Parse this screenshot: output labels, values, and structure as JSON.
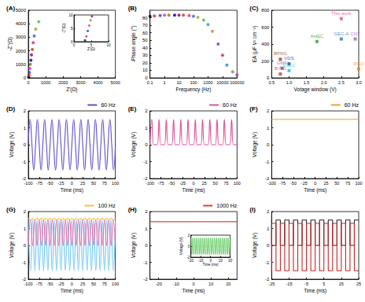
{
  "chart_data": [
    {
      "type": "scatter",
      "title": "(A)",
      "x_label": "Z'(Ω)",
      "y_label": "-Z''(Ω)",
      "marker": "circle",
      "grid": false,
      "x": [
        20,
        40,
        60,
        90,
        120,
        150,
        180,
        230,
        280,
        340,
        420,
        600
      ],
      "values": [
        50,
        200,
        400,
        700,
        1000,
        1300,
        1700,
        2100,
        2600,
        3100,
        3600,
        4150
      ],
      "colors": [
        "#000000",
        "#e02020",
        "#2040e0",
        "#e020e0",
        "#808000",
        "#000080",
        "#800080",
        "#c04000",
        "#e02080",
        "#4060c0",
        "#a0a020",
        "#40c040"
      ],
      "xlim": [
        0,
        5000
      ],
      "xticks": [
        0,
        1000,
        2000,
        3000,
        4000,
        5000
      ],
      "ylim": [
        0,
        5000
      ],
      "yticks": [
        0,
        1000,
        2000,
        3000,
        4000,
        5000
      ],
      "inset": {
        "type": "scatter",
        "x_label": "Z'(Ω)",
        "y_label": "-Z''(Ω)",
        "marker": "circle",
        "grid": false,
        "x": [
          3.2,
          3.6,
          4.0,
          4.4,
          4.8,
          5.2
        ],
        "values": [
          0.5,
          2,
          4,
          6,
          8,
          9.5
        ],
        "colors": [
          "#000000",
          "#e02020",
          "#2040e0",
          "#e020e0",
          "#808000",
          "#800080"
        ],
        "xlim": [
          0,
          10
        ],
        "xticks": [
          0,
          5,
          10
        ],
        "ylim": [
          0,
          10
        ],
        "yticks": [
          0,
          5,
          10
        ]
      }
    },
    {
      "type": "scatter",
      "title": "(B)",
      "x_label": "Frequency (Hz)",
      "y_label": "-Phase angle (°)",
      "marker": "circle",
      "grid": false,
      "log": "x",
      "x": [
        0.1,
        0.2,
        0.5,
        1,
        2,
        5,
        10,
        20,
        50,
        100,
        200,
        500,
        1000,
        2000,
        5000,
        10000,
        20000,
        50000,
        100000
      ],
      "values": [
        82,
        82.5,
        83,
        83.5,
        83.5,
        83.5,
        83.5,
        83.5,
        83,
        82,
        80.5,
        77,
        71,
        62,
        45,
        30,
        17,
        8,
        4
      ],
      "colors": [
        "#000000",
        "#e02020",
        "#2040e0",
        "#e020e0",
        "#808000",
        "#000080",
        "#800080",
        "#c04000",
        "#e02080",
        "#4060c0",
        "#a0a020",
        "#40c040",
        "#20a0a0",
        "#e08020",
        "#6040c0",
        "#c02060",
        "#2080e0",
        "#60a040",
        "#a040a0"
      ],
      "xlim": [
        0.1,
        100000
      ],
      "xticks": [
        0.1,
        1,
        10,
        100,
        1000,
        10000,
        100000
      ],
      "ylim": [
        0,
        90
      ],
      "yticks": [
        0,
        10,
        20,
        30,
        40,
        50,
        60,
        70,
        80
      ]
    },
    {
      "type": "scatter",
      "title": "(C)",
      "x_label": "Votage window (V)",
      "y_label": "EA (μF V² cm⁻²)",
      "marker": "square",
      "grid": false,
      "x": [
        0.75,
        1.0,
        0.8,
        1.0,
        0.75,
        1.8,
        2.5,
        2.9,
        3.0,
        2.5
      ],
      "values": [
        220,
        165,
        115,
        85,
        45,
        430,
        460,
        460,
        105,
        700
      ],
      "labels": [
        "BPNG",
        "VDS",
        "GMF",
        "VOLC",
        "B-NG",
        "AHEC",
        "GEC-A",
        "CNT",
        "RGO",
        "This work"
      ],
      "colors": [
        "#8b4513",
        "#1f3a93",
        "#6a5acd",
        "#17becf",
        "#c0392b",
        "#2ca02c",
        "#1f77b4",
        "#9467bd",
        "#ff7f0e",
        "#e84a8a"
      ],
      "xlim": [
        0.5,
        3.0
      ],
      "xticks": [
        0.5,
        {
          "value": 1,
          "label": "1.0"
        },
        1.5,
        {
          "value": 2,
          "label": "2.0"
        },
        2.5,
        {
          "value": 3,
          "label": "3.0"
        }
      ],
      "ylim": [
        0,
        800
      ],
      "yticks": [
        0,
        200,
        400,
        600,
        800
      ]
    },
    {
      "type": "line",
      "title": "(D)",
      "x_label": "Time (ms)",
      "y_label": "Voltage (V)",
      "grid": false,
      "legend": "upper right",
      "x": [
        -100,
        -95.8,
        -91.7,
        -87.5,
        -83.3,
        -79.2,
        -75,
        -70.8,
        -66.7,
        -62.5,
        -58.3,
        -54.2,
        -50,
        -45.8,
        -41.7,
        -37.5,
        -33.3,
        -29.2,
        -25,
        -20.8,
        -16.7,
        -12.5,
        -8.3,
        -4.2,
        0,
        4.2,
        8.3,
        12.5,
        16.7,
        20.8,
        25,
        29.2,
        33.3,
        37.5,
        41.7,
        45.8,
        50,
        54.2,
        58.3,
        62.5,
        66.7,
        70.8,
        75,
        79.2,
        83.3,
        87.5,
        91.7,
        95.8,
        100
      ],
      "series": [
        {
          "name": "60 Hz",
          "color": "#5b4fcf",
          "line_style": "smooth",
          "values": [
            0,
            1.5,
            0,
            -1.5,
            0,
            1.5,
            0,
            -1.5,
            0,
            1.5,
            0,
            -1.5,
            0,
            1.5,
            0,
            -1.5,
            0,
            1.5,
            0,
            -1.5,
            0,
            1.5,
            0,
            -1.5,
            0,
            1.5,
            0,
            -1.5,
            0,
            1.5,
            0,
            -1.5,
            0,
            1.5,
            0,
            -1.5,
            0,
            1.5,
            0,
            -1.5,
            0,
            1.5,
            0,
            -1.5,
            0,
            1.5,
            0,
            -1.5,
            0
          ]
        }
      ],
      "xlim": [
        -100,
        100
      ],
      "xticks": [
        -100,
        -75,
        -50,
        -25,
        0,
        25,
        50,
        75,
        100
      ],
      "ylim": [
        -2,
        2
      ],
      "yticks": [
        -2,
        -1,
        0,
        1,
        2
      ]
    },
    {
      "type": "line",
      "title": "(E)",
      "x_label": "Time (ms)",
      "y_label": "Voltage (V)",
      "grid": false,
      "legend": "upper right",
      "x": [
        -100,
        -95.8,
        -91.7,
        -87.5,
        -83.3,
        -79.2,
        -75,
        -70.8,
        -66.7,
        -62.5,
        -58.3,
        -54.2,
        -50,
        -45.8,
        -41.7,
        -37.5,
        -33.3,
        -29.2,
        -25,
        -20.8,
        -16.7,
        -12.5,
        -8.3,
        -4.2,
        0,
        4.2,
        8.3,
        12.5,
        16.7,
        20.8,
        25,
        29.2,
        33.3,
        37.5,
        41.7,
        45.8,
        50,
        54.2,
        58.3,
        62.5,
        66.7,
        70.8,
        75,
        79.2,
        83.3,
        87.5,
        91.7,
        95.8,
        100
      ],
      "series": [
        {
          "name": "60 Hz",
          "color": "#e0509a",
          "line_style": "smooth",
          "values": [
            0,
            1.5,
            0,
            0,
            0,
            1.5,
            0,
            0,
            0,
            1.5,
            0,
            0,
            0,
            1.5,
            0,
            0,
            0,
            1.5,
            0,
            0,
            0,
            1.5,
            0,
            0,
            0,
            1.5,
            0,
            0,
            0,
            1.5,
            0,
            0,
            0,
            1.5,
            0,
            0,
            0,
            1.5,
            0,
            0,
            0,
            1.5,
            0,
            0,
            0,
            1.5,
            0,
            0,
            0
          ]
        }
      ],
      "xlim": [
        -100,
        100
      ],
      "xticks": [
        -100,
        -75,
        -50,
        -25,
        0,
        25,
        50,
        75,
        100
      ],
      "ylim": [
        -2,
        2
      ],
      "yticks": [
        -2,
        -1,
        0,
        1,
        2
      ]
    },
    {
      "type": "line",
      "title": "(F)",
      "x_label": "Time (ms)",
      "y_label": "Voltage (V)",
      "grid": false,
      "legend": "upper right",
      "x": [
        -100,
        100
      ],
      "series": [
        {
          "name": "60 Hz",
          "color": "#f0a030",
          "line_style": "solid",
          "values": [
            1.5,
            1.5
          ]
        }
      ],
      "xlim": [
        -100,
        100
      ],
      "xticks": [
        -100,
        -75,
        -50,
        -25,
        0,
        25,
        50,
        75,
        100
      ],
      "ylim": [
        -2,
        2
      ],
      "yticks": [
        -2,
        -1,
        0,
        1,
        2
      ]
    },
    {
      "type": "line",
      "title": "(G)",
      "x_label": "Time (ms)",
      "y_label": "Voltage (V)",
      "grid": false,
      "legend": "upper right",
      "x": [
        -100,
        -95,
        -90,
        -85,
        -80,
        -75,
        -70,
        -65,
        -60,
        -55,
        -50,
        -45,
        -40,
        -35,
        -30,
        -25,
        -20,
        -15,
        -10,
        -5,
        0,
        5,
        10,
        15,
        20,
        25,
        30,
        35,
        40,
        45,
        50,
        55,
        60,
        65,
        70,
        75,
        80,
        85,
        90,
        95,
        100
      ],
      "series": [
        {
          "name": "100 Hz",
          "color": "#f2c744",
          "line_style": "smooth",
          "values": [
            1.6,
            1.5,
            1.6,
            1.5,
            1.6,
            1.5,
            1.6,
            1.5,
            1.6,
            1.5,
            1.6,
            1.5,
            1.6,
            1.5,
            1.6,
            1.5,
            1.6,
            1.5,
            1.6,
            1.5,
            1.6,
            1.5,
            1.6,
            1.5,
            1.6,
            1.5,
            1.6,
            1.5,
            1.6,
            1.5,
            1.6,
            1.5,
            1.6,
            1.5,
            1.6,
            1.5,
            1.6,
            1.5,
            1.6,
            1.5,
            1.6
          ]
        },
        {
          "color": "#6ec6f0",
          "line_style": "smooth",
          "values": [
            1.5,
            -1.5,
            1.5,
            -1.5,
            1.5,
            -1.5,
            1.5,
            -1.5,
            1.5,
            -1.5,
            1.5,
            -1.5,
            1.5,
            -1.5,
            1.5,
            -1.5,
            1.5,
            -1.5,
            1.5,
            -1.5,
            1.5,
            -1.5,
            1.5,
            -1.5,
            1.5,
            -1.5,
            1.5,
            -1.5,
            1.5,
            -1.5,
            1.5,
            -1.5,
            1.5,
            -1.5,
            1.5,
            -1.5,
            1.5,
            -1.5,
            1.5,
            -1.5,
            1.5
          ]
        },
        {
          "color": "#e86aa8",
          "line_style": "smooth",
          "values": [
            0,
            1.5,
            0,
            1.5,
            0,
            1.5,
            0,
            1.5,
            0,
            1.5,
            0,
            1.5,
            0,
            1.5,
            0,
            1.5,
            0,
            1.5,
            0,
            1.5,
            0,
            1.5,
            0,
            1.5,
            0,
            1.5,
            0,
            1.5,
            0,
            1.5,
            0,
            1.5,
            0,
            1.5,
            0,
            1.5,
            0,
            1.5,
            0,
            1.5,
            0
          ]
        }
      ],
      "xlim": [
        -100,
        100
      ],
      "xticks": [
        -100,
        -75,
        -50,
        -25,
        0,
        25,
        50,
        75,
        100
      ],
      "ylim": [
        -2,
        2
      ],
      "yticks": [
        -2,
        -1,
        0,
        1,
        2
      ]
    },
    {
      "type": "line",
      "title": "(H)",
      "x_label": "Time (ms)",
      "y_label": "Voltage (V)",
      "grid": false,
      "legend": "upper right",
      "x": [
        -25,
        25
      ],
      "series": [
        {
          "name": "1000 Hz",
          "color": "#e04040",
          "line_style": "solid",
          "values": [
            1.4,
            1.4
          ]
        }
      ],
      "xlim": [
        -25,
        25
      ],
      "xticks": [
        -20,
        -10,
        0,
        10,
        20
      ],
      "ylim": [
        -2,
        2
      ],
      "yticks": [
        -2,
        -1,
        0,
        1,
        2
      ],
      "inset": {
        "type": "line",
        "x_label": "Time (ms)",
        "y_label": "Voltage (V)",
        "grid": false,
        "x": [
          -20,
          -19,
          -18,
          -17,
          -16,
          -15,
          -14,
          -13,
          -12,
          -11,
          -10,
          -9,
          -8,
          -7,
          -6,
          -5,
          -4,
          -3,
          -2,
          -1,
          0,
          1,
          2,
          3,
          4,
          5,
          6,
          7,
          8,
          9,
          10,
          11,
          12,
          13,
          14,
          15,
          16,
          17,
          18,
          19,
          20
        ],
        "series": [
          {
            "color": "#40c040",
            "line_style": "smooth",
            "values": [
              1.5,
              -1.5,
              1.5,
              -1.5,
              1.5,
              -1.5,
              1.5,
              -1.5,
              1.5,
              -1.5,
              1.5,
              -1.5,
              1.5,
              -1.5,
              1.5,
              -1.5,
              1.5,
              -1.5,
              1.5,
              -1.5,
              1.5,
              -1.5,
              1.5,
              -1.5,
              1.5,
              -1.5,
              1.5,
              -1.5,
              1.5,
              -1.5,
              1.5,
              -1.5,
              1.5,
              -1.5,
              1.5,
              -1.5,
              1.5,
              -1.5,
              1.5,
              -1.5,
              1.5
            ]
          }
        ],
        "xlim": [
          -20,
          20
        ],
        "xticks": [
          -20,
          -10,
          0,
          10,
          20
        ],
        "ylim": [
          -2,
          2
        ],
        "yticks": [
          -2,
          0,
          2
        ]
      }
    },
    {
      "type": "line",
      "title": "(I)",
      "x_label": "Time (ms)",
      "y_label": "Voltage (V)",
      "grid": false,
      "x": [
        -25,
        -22.5,
        -20,
        -17.5,
        -15,
        -12.5,
        -10,
        -7.5,
        -5,
        -2.5,
        0,
        2.5,
        5,
        7.5,
        10,
        12.5,
        15,
        17.5,
        20,
        22.5,
        25
      ],
      "series": [
        {
          "color": "#222222",
          "line_style": "step",
          "values": [
            1.5,
            0,
            1.5,
            0,
            1.5,
            0,
            1.5,
            0,
            1.5,
            0,
            1.5,
            0,
            1.5,
            0,
            1.5,
            0,
            1.5,
            0,
            1.5,
            0,
            1.5
          ]
        },
        {
          "color": "#cc2222",
          "line_style": "step",
          "values": [
            -1.5,
            1.3,
            -1.5,
            1.3,
            -1.5,
            1.3,
            -1.5,
            1.3,
            -1.5,
            1.3,
            -1.5,
            1.3,
            -1.5,
            1.3,
            -1.5,
            1.3,
            -1.5,
            1.3,
            -1.5,
            1.3,
            -1.5
          ]
        }
      ],
      "xlim": [
        -25,
        25
      ],
      "xticks": [
        -25,
        -15,
        -5,
        5,
        15,
        25
      ],
      "ylim": [
        -2,
        2
      ],
      "yticks": [
        -2,
        -1,
        0,
        1,
        2
      ]
    }
  ]
}
